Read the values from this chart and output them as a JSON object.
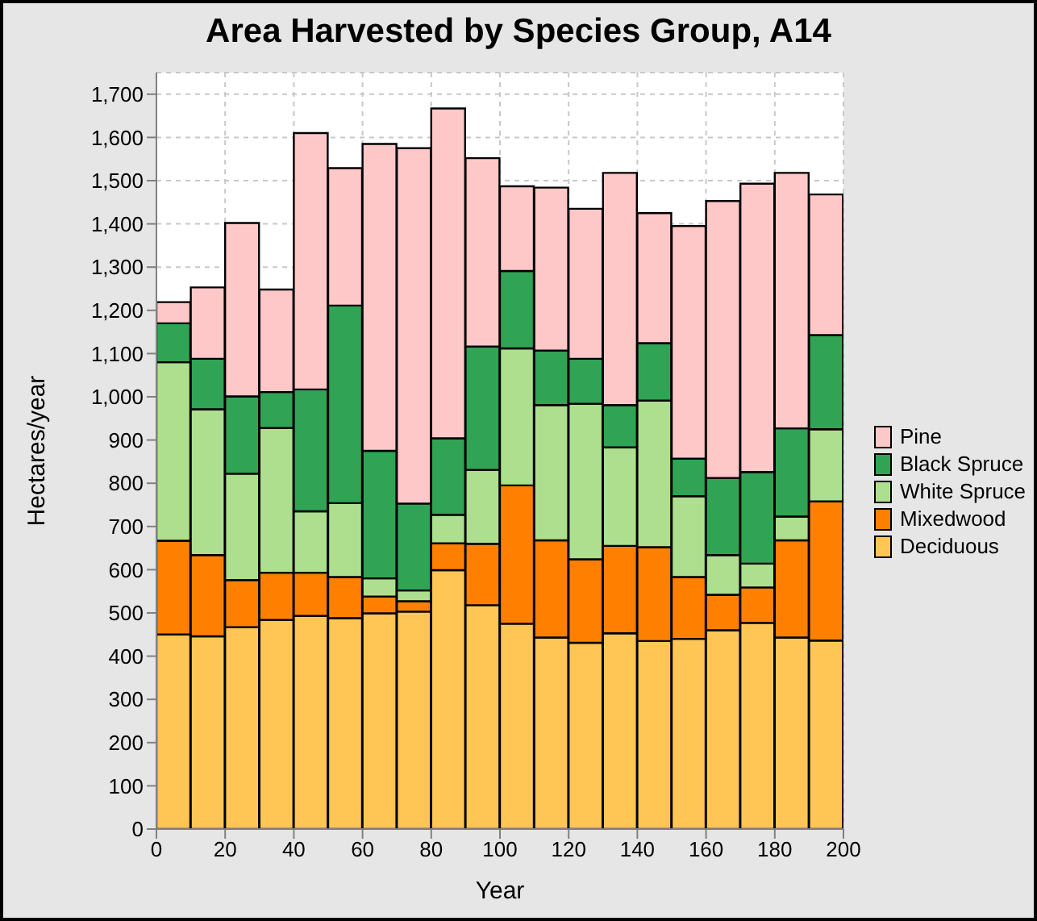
{
  "chart_data": {
    "type": "bar",
    "title": "Area Harvested by Species Group, A14",
    "xlabel": "Year",
    "ylabel": "Hectares/year",
    "x": [
      5,
      15,
      25,
      35,
      45,
      55,
      65,
      75,
      85,
      95,
      105,
      115,
      125,
      135,
      145,
      155,
      165,
      175,
      185,
      195
    ],
    "xlim": [
      0,
      200
    ],
    "xticks": [
      0,
      20,
      40,
      60,
      80,
      100,
      120,
      140,
      160,
      180,
      200
    ],
    "ylim": [
      0,
      1750
    ],
    "yticks": [
      0,
      100,
      200,
      300,
      400,
      500,
      600,
      700,
      800,
      900,
      {
        "value": 1000,
        "label": "1,000"
      },
      {
        "value": 1100,
        "label": "1,100"
      },
      {
        "value": 1200,
        "label": "1,200"
      },
      {
        "value": 1300,
        "label": "1,300"
      },
      {
        "value": 1400,
        "label": "1,400"
      },
      {
        "value": 1500,
        "label": "1,500"
      },
      {
        "value": 1600,
        "label": "1,600"
      },
      {
        "value": 1700,
        "label": "1,700"
      }
    ],
    "stacked": true,
    "grid": true,
    "legend": "right",
    "series": [
      {
        "name": "Deciduous",
        "color": "#ffc655",
        "values": [
          450,
          446,
          467,
          484,
          493,
          488,
          499,
          503,
          599,
          518,
          475,
          443,
          431,
          453,
          435,
          440,
          460,
          477,
          443,
          436
        ]
      },
      {
        "name": "Mixedwood",
        "color": "#ff8000",
        "values": [
          217,
          188,
          109,
          109,
          100,
          95,
          39,
          24,
          62,
          142,
          320,
          225,
          193,
          202,
          217,
          143,
          82,
          82,
          225,
          322
        ]
      },
      {
        "name": "White Spruce",
        "color": "#addf8f",
        "values": [
          413,
          337,
          246,
          335,
          142,
          171,
          42,
          25,
          66,
          171,
          317,
          313,
          360,
          228,
          339,
          187,
          92,
          55,
          55,
          167
        ]
      },
      {
        "name": "Black Spruce",
        "color": "#31a354",
        "values": [
          90,
          117,
          179,
          83,
          282,
          457,
          295,
          201,
          177,
          285,
          179,
          126,
          104,
          98,
          133,
          87,
          178,
          212,
          204,
          218
        ]
      },
      {
        "name": "Pine",
        "color": "#ffc8c8",
        "values": [
          49,
          165,
          401,
          237,
          593,
          318,
          710,
          822,
          763,
          436,
          196,
          377,
          347,
          537,
          301,
          538,
          641,
          667,
          591,
          325
        ]
      }
    ]
  }
}
